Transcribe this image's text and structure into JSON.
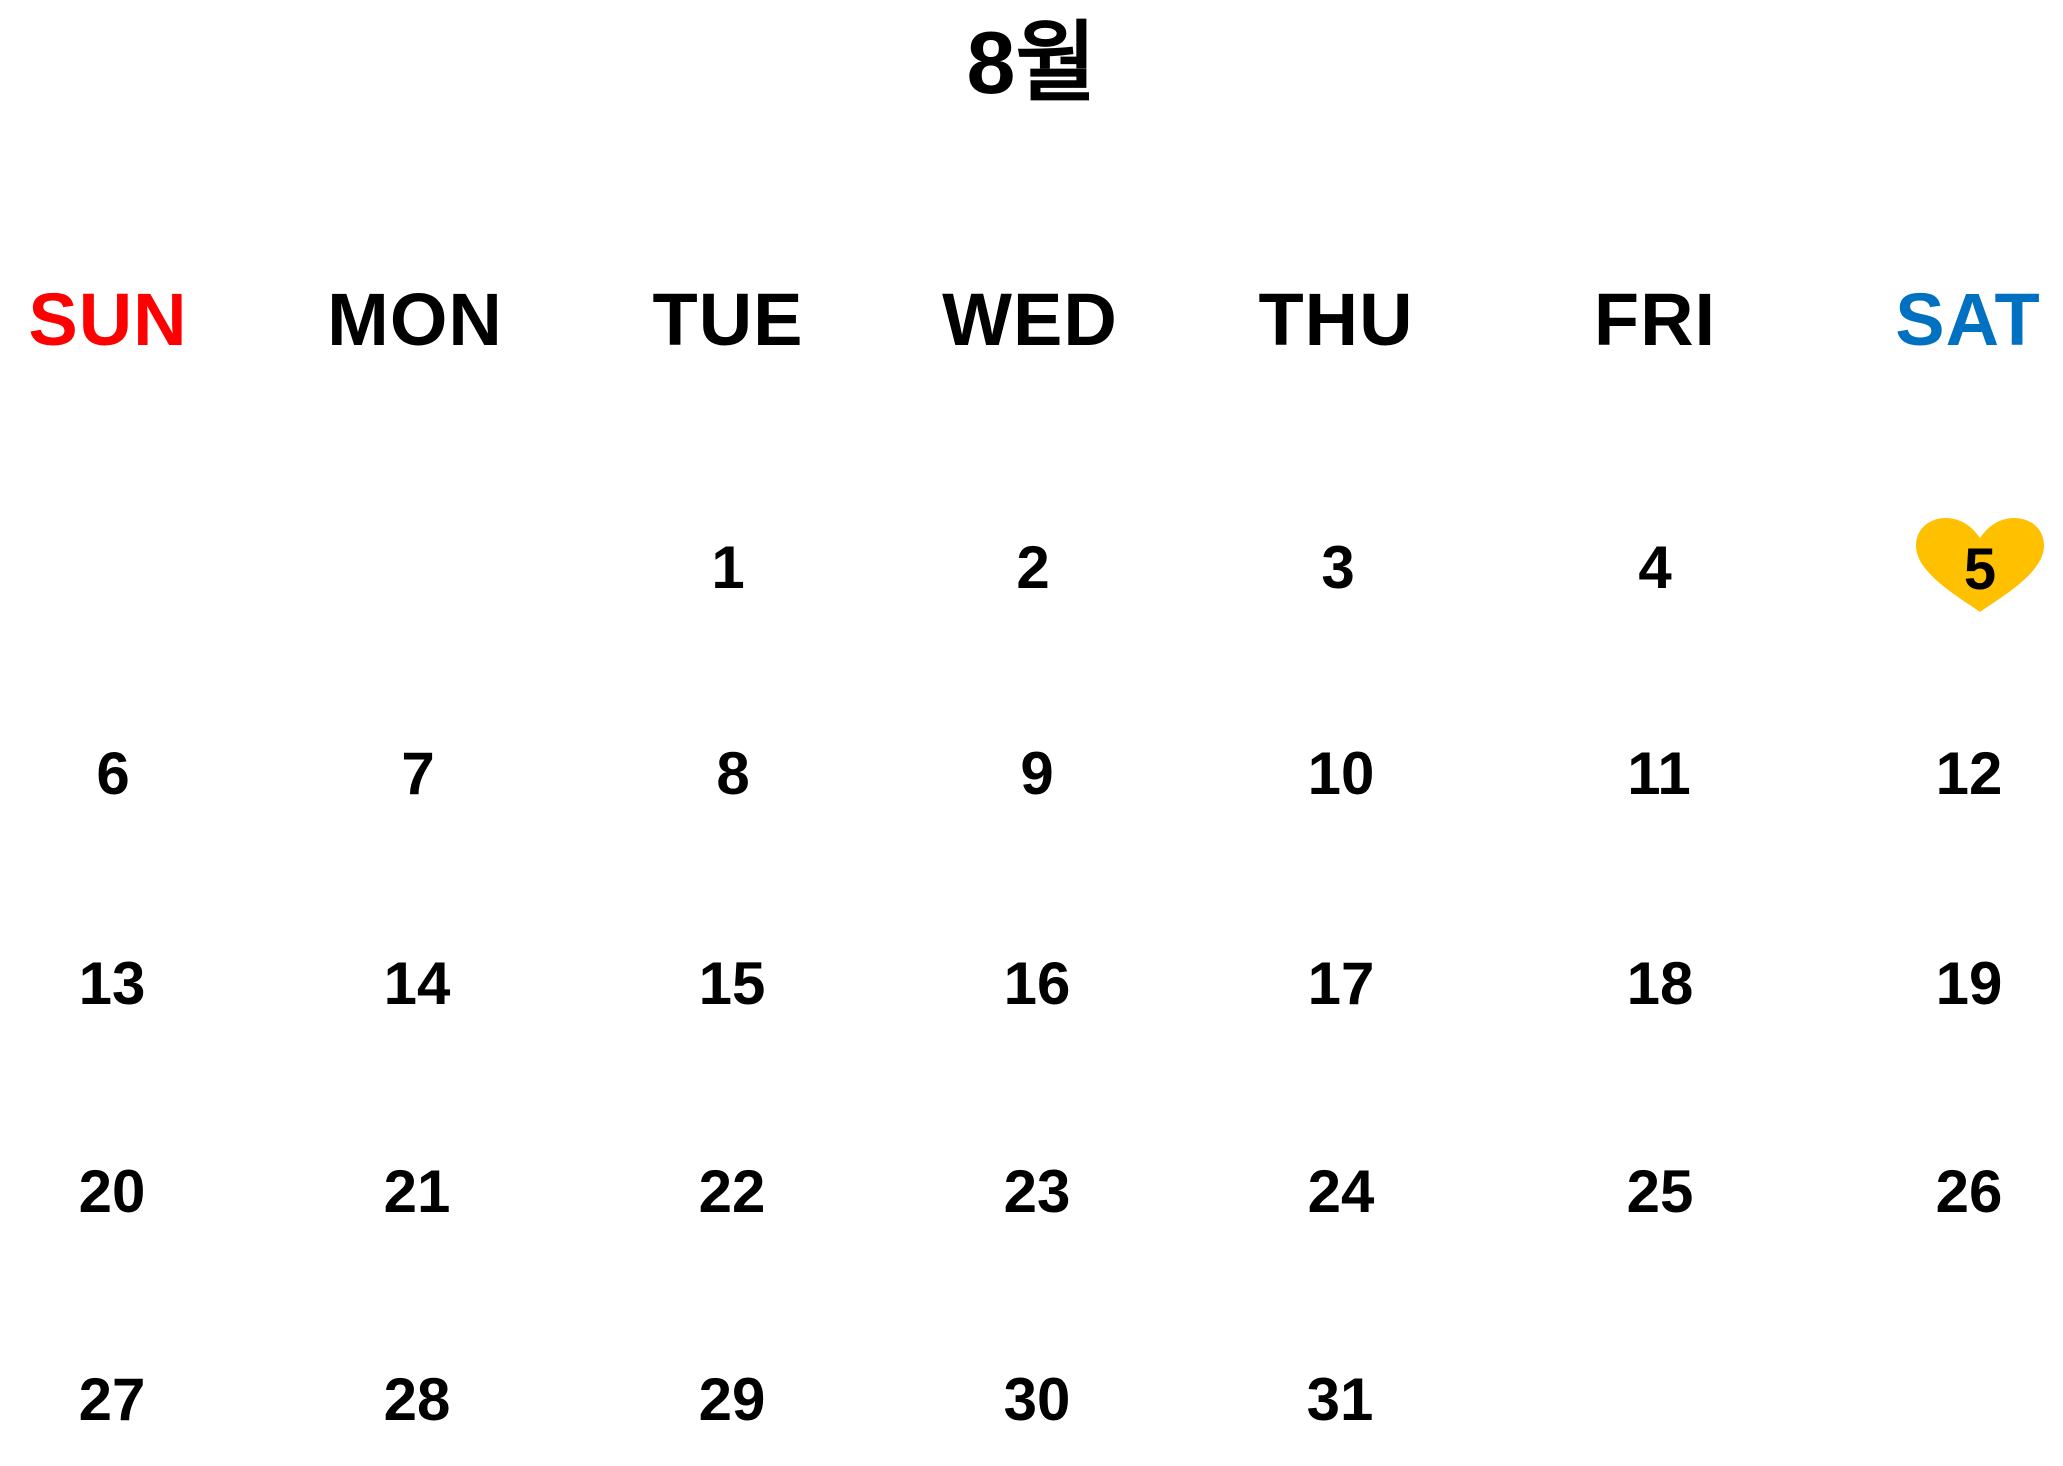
{
  "calendar": {
    "title": "8월",
    "weekdays": [
      {
        "label": "SUN",
        "color": "#ff0000"
      },
      {
        "label": "MON",
        "color": "#000000"
      },
      {
        "label": "TUE",
        "color": "#000000"
      },
      {
        "label": "WED",
        "color": "#000000"
      },
      {
        "label": "THU",
        "color": "#000000"
      },
      {
        "label": "FRI",
        "color": "#000000"
      },
      {
        "label": "SAT",
        "color": "#0070c0"
      }
    ],
    "weeks": [
      [
        "",
        "",
        "1",
        "2",
        "3",
        "4",
        "5"
      ],
      [
        "6",
        "7",
        "8",
        "9",
        "10",
        "11",
        "12"
      ],
      [
        "13",
        "14",
        "15",
        "16",
        "17",
        "18",
        "19"
      ],
      [
        "20",
        "21",
        "22",
        "23",
        "24",
        "25",
        "26"
      ],
      [
        "27",
        "28",
        "29",
        "30",
        "31",
        "",
        ""
      ]
    ],
    "highlight": {
      "day": "5",
      "icon": "heart-icon",
      "color": "#ffc000"
    }
  }
}
